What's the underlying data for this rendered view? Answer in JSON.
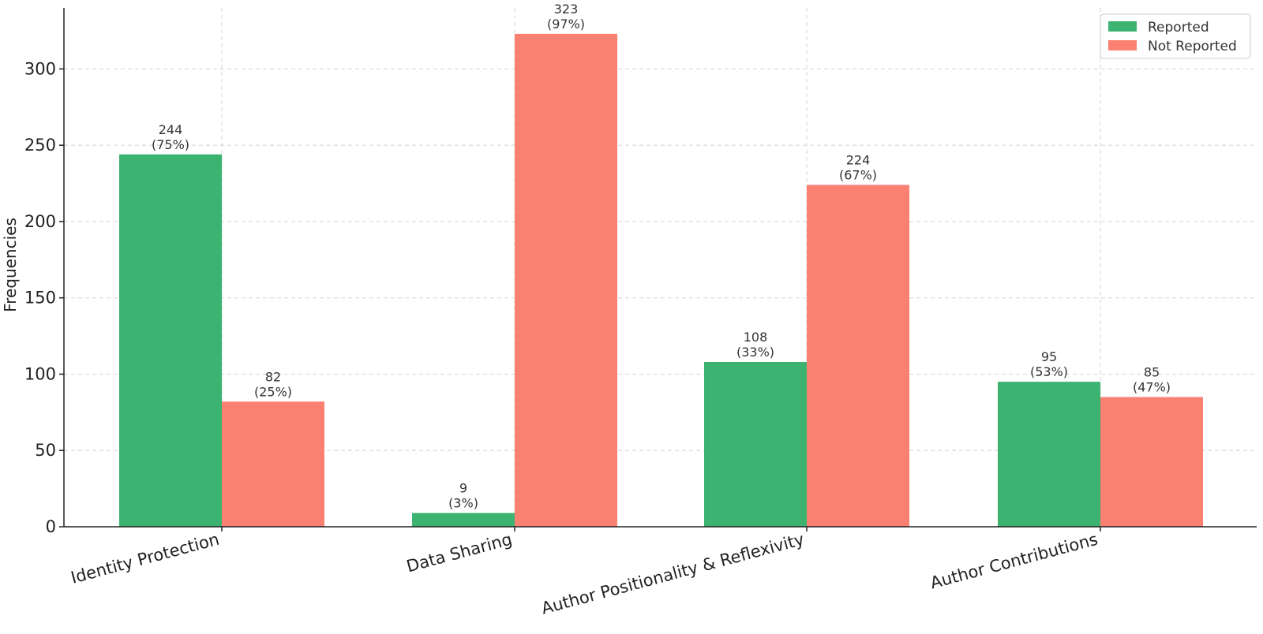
{
  "chart_data": {
    "type": "bar",
    "title": "",
    "xlabel": "",
    "ylabel": "Frequencies",
    "ylim": [
      0,
      340
    ],
    "yticks": [
      0,
      50,
      100,
      150,
      200,
      250,
      300
    ],
    "grid": true,
    "legend_position": "top-right",
    "categories": [
      "Identity Protection",
      "Data Sharing",
      "Author Positionality & Reflexivity",
      "Author Contributions"
    ],
    "series": [
      {
        "name": "Reported",
        "color": "#3cb371",
        "values": [
          244,
          9,
          108,
          95
        ],
        "labels": [
          [
            "244",
            "(75%)"
          ],
          [
            "9",
            "(3%)"
          ],
          [
            "108",
            "(33%)"
          ],
          [
            "95",
            "(53%)"
          ]
        ]
      },
      {
        "name": "Not Reported",
        "color": "#fa8072",
        "values": [
          82,
          323,
          224,
          85
        ],
        "labels": [
          [
            "82",
            "(25%)"
          ],
          [
            "323",
            "(97%)"
          ],
          [
            "224",
            "(67%)"
          ],
          [
            "85",
            "(47%)"
          ]
        ]
      }
    ]
  }
}
